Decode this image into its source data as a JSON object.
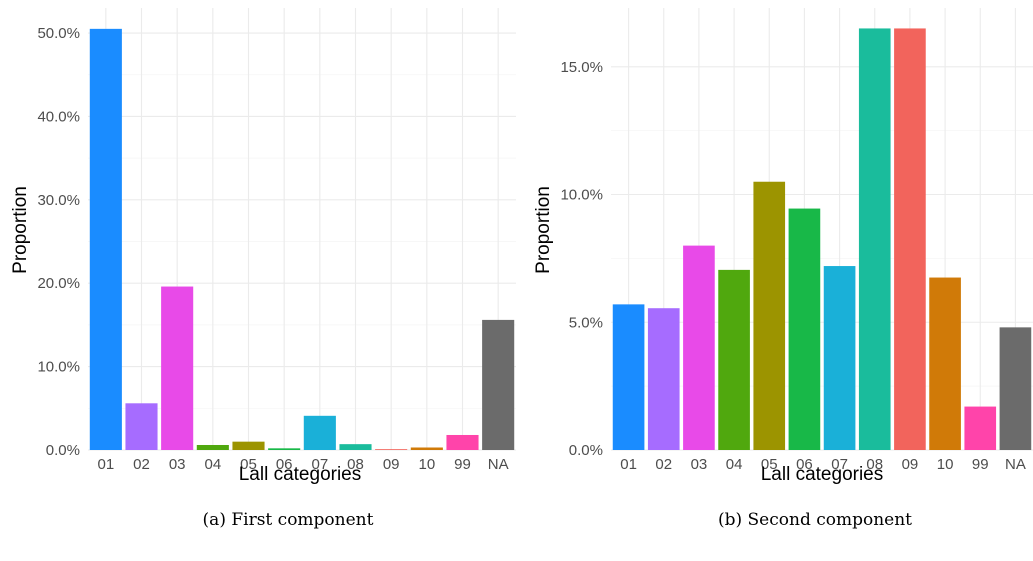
{
  "chart_data": [
    {
      "type": "bar",
      "caption": "(a) First component",
      "xlabel": "Lall categories",
      "ylabel": "Proportion",
      "categories": [
        "01",
        "02",
        "03",
        "04",
        "05",
        "06",
        "07",
        "08",
        "09",
        "10",
        "99",
        "NA"
      ],
      "values": [
        50.5,
        5.6,
        19.6,
        0.6,
        1.0,
        0.2,
        4.1,
        0.7,
        0.1,
        0.3,
        1.8,
        15.6
      ],
      "colors": [
        "#1a8cff",
        "#a66cff",
        "#e84ae8",
        "#50a80e",
        "#9c9400",
        "#18b848",
        "#1ab0d8",
        "#1abc9c",
        "#f2645c",
        "#d07a08",
        "#ff44aa",
        "#6b6b6b"
      ],
      "y_ticks": [
        "0.0%",
        "10.0%",
        "20.0%",
        "30.0%",
        "40.0%",
        "50.0%"
      ],
      "y_tick_values": [
        0,
        10,
        20,
        30,
        40,
        50
      ],
      "ylim": [
        0,
        53
      ],
      "grid": true
    },
    {
      "type": "bar",
      "caption": "(b) Second component",
      "xlabel": "Lall categories",
      "ylabel": "Proportion",
      "categories": [
        "01",
        "02",
        "03",
        "04",
        "05",
        "06",
        "07",
        "08",
        "09",
        "10",
        "99",
        "NA"
      ],
      "values": [
        5.7,
        5.55,
        8.0,
        7.05,
        10.5,
        9.45,
        7.2,
        16.5,
        16.5,
        6.75,
        1.7,
        4.8
      ],
      "colors": [
        "#1a8cff",
        "#a66cff",
        "#e84ae8",
        "#50a80e",
        "#9c9400",
        "#18b848",
        "#1ab0d8",
        "#1abc9c",
        "#f2645c",
        "#d07a08",
        "#ff44aa",
        "#6b6b6b"
      ],
      "y_ticks": [
        "0.0%",
        "5.0%",
        "10.0%",
        "15.0%"
      ],
      "y_tick_values": [
        0,
        5,
        10,
        15
      ],
      "ylim": [
        0,
        17.3
      ],
      "grid": true
    }
  ]
}
